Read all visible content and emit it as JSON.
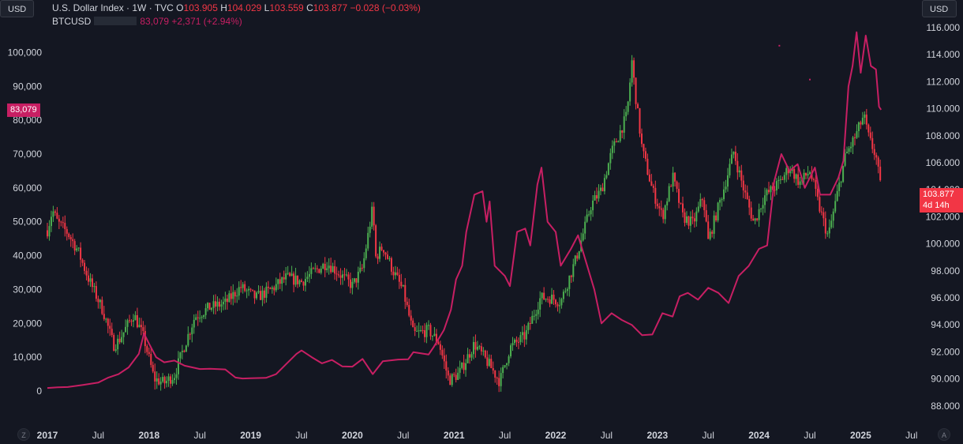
{
  "buttons": {
    "left_currency": "USD",
    "right_currency": "USD"
  },
  "legend": {
    "main_symbol": "U.S. Dollar Index · 1W · TVC",
    "open_label": "O",
    "open_value": "103.905",
    "high_label": "H",
    "high_value": "104.029",
    "low_label": "L",
    "low_value": "103.559",
    "close_label": "C",
    "close_value": "103.877",
    "change": "−0.028 (−0.03%)",
    "overlay_symbol": "BTCUSD",
    "overlay_value": "83,079",
    "overlay_change": "+2,371 (+2.94%)"
  },
  "badges": {
    "btc_price": "83,079",
    "dxy_price": "103.877",
    "dxy_countdown": "4d 14h"
  },
  "corners": {
    "left": "Z",
    "right": "A"
  },
  "colors": {
    "background": "#141722",
    "up": "#4caf50",
    "down": "#f23645",
    "overlay": "#c71f63",
    "axis_text": "#d1d4dc"
  },
  "chart_data": {
    "type": "line",
    "candlestick_series": "U.S. Dollar Index · 1W · TVC",
    "overlay_series": "BTCUSD",
    "x_ticks": [
      "2017",
      "Jul",
      "2018",
      "Jul",
      "2019",
      "Jul",
      "2020",
      "Jul",
      "2021",
      "Jul",
      "2022",
      "Jul",
      "2023",
      "Jul",
      "2024",
      "Jul",
      "2025",
      "Jul"
    ],
    "y_left_ticks": [
      "100,000",
      "90,000",
      "80,000",
      "70,000",
      "60,000",
      "50,000",
      "40,000",
      "30,000",
      "20,000",
      "10,000",
      "0"
    ],
    "y_left_range": [
      0,
      100000
    ],
    "y_right_ticks": [
      "116.000",
      "114.000",
      "112.000",
      "110.000",
      "108.000",
      "106.000",
      "104.000",
      "102.000",
      "100.000",
      "98.000",
      "96.000",
      "94.000",
      "92.000",
      "90.000",
      "88.000"
    ],
    "y_right_range": [
      88,
      116
    ],
    "dxy_anchors": [
      [
        2017.0,
        101.0
      ],
      [
        2017.05,
        102.5
      ],
      [
        2017.1,
        101.6
      ],
      [
        2017.2,
        100.8
      ],
      [
        2017.3,
        99.5
      ],
      [
        2017.4,
        97.5
      ],
      [
        2017.55,
        95.0
      ],
      [
        2017.65,
        92.5
      ],
      [
        2017.7,
        92.8
      ],
      [
        2017.85,
        94.8
      ],
      [
        2017.95,
        93.0
      ],
      [
        2018.05,
        90.0
      ],
      [
        2018.15,
        89.7
      ],
      [
        2018.25,
        90.3
      ],
      [
        2018.35,
        92.5
      ],
      [
        2018.45,
        94.6
      ],
      [
        2018.6,
        95.3
      ],
      [
        2018.75,
        95.6
      ],
      [
        2018.9,
        96.8
      ],
      [
        2019.05,
        96.0
      ],
      [
        2019.2,
        96.6
      ],
      [
        2019.35,
        97.5
      ],
      [
        2019.5,
        97.2
      ],
      [
        2019.6,
        97.8
      ],
      [
        2019.75,
        98.6
      ],
      [
        2019.9,
        97.6
      ],
      [
        2020.0,
        96.9
      ],
      [
        2020.1,
        98.2
      ],
      [
        2020.2,
        102.7
      ],
      [
        2020.23,
        99.0
      ],
      [
        2020.3,
        99.8
      ],
      [
        2020.4,
        98.0
      ],
      [
        2020.5,
        96.5
      ],
      [
        2020.6,
        93.3
      ],
      [
        2020.75,
        93.6
      ],
      [
        2020.85,
        92.7
      ],
      [
        2020.95,
        89.9
      ],
      [
        2021.05,
        90.4
      ],
      [
        2021.2,
        92.6
      ],
      [
        2021.35,
        91.0
      ],
      [
        2021.45,
        89.8
      ],
      [
        2021.55,
        92.3
      ],
      [
        2021.7,
        93.2
      ],
      [
        2021.85,
        96.0
      ],
      [
        2021.95,
        96.0
      ],
      [
        2022.05,
        95.7
      ],
      [
        2022.2,
        98.9
      ],
      [
        2022.35,
        102.9
      ],
      [
        2022.45,
        104.0
      ],
      [
        2022.55,
        106.8
      ],
      [
        2022.7,
        109.5
      ],
      [
        2022.75,
        113.5
      ],
      [
        2022.78,
        111.3
      ],
      [
        2022.85,
        107.0
      ],
      [
        2022.95,
        104.0
      ],
      [
        2023.05,
        102.0
      ],
      [
        2023.15,
        105.0
      ],
      [
        2023.25,
        102.0
      ],
      [
        2023.35,
        101.5
      ],
      [
        2023.45,
        103.5
      ],
      [
        2023.5,
        100.2
      ],
      [
        2023.65,
        104.0
      ],
      [
        2023.75,
        106.8
      ],
      [
        2023.85,
        104.0
      ],
      [
        2023.95,
        101.5
      ],
      [
        2024.05,
        103.5
      ],
      [
        2024.2,
        104.5
      ],
      [
        2024.3,
        105.7
      ],
      [
        2024.4,
        104.5
      ],
      [
        2024.5,
        105.4
      ],
      [
        2024.6,
        102.5
      ],
      [
        2024.68,
        100.5
      ],
      [
        2024.75,
        103.0
      ],
      [
        2024.85,
        106.5
      ],
      [
        2024.95,
        108.0
      ],
      [
        2025.03,
        109.5
      ],
      [
        2025.08,
        107.8
      ],
      [
        2025.15,
        106.5
      ],
      [
        2025.2,
        103.9
      ]
    ],
    "btc_points": [
      [
        2017.0,
        900
      ],
      [
        2017.1,
        1100
      ],
      [
        2017.2,
        1200
      ],
      [
        2017.35,
        1800
      ],
      [
        2017.5,
        2500
      ],
      [
        2017.6,
        4000
      ],
      [
        2017.7,
        5000
      ],
      [
        2017.8,
        7000
      ],
      [
        2017.9,
        11000
      ],
      [
        2017.95,
        17000
      ],
      [
        2018.0,
        14000
      ],
      [
        2018.07,
        10000
      ],
      [
        2018.15,
        8500
      ],
      [
        2018.25,
        9000
      ],
      [
        2018.35,
        7500
      ],
      [
        2018.5,
        6500
      ],
      [
        2018.6,
        6600
      ],
      [
        2018.75,
        6400
      ],
      [
        2018.85,
        4000
      ],
      [
        2018.92,
        3700
      ],
      [
        2019.0,
        3800
      ],
      [
        2019.15,
        3900
      ],
      [
        2019.25,
        5000
      ],
      [
        2019.35,
        8000
      ],
      [
        2019.45,
        11000
      ],
      [
        2019.5,
        12000
      ],
      [
        2019.6,
        10000
      ],
      [
        2019.7,
        8200
      ],
      [
        2019.8,
        9200
      ],
      [
        2019.9,
        7300
      ],
      [
        2020.0,
        7200
      ],
      [
        2020.1,
        9500
      ],
      [
        2020.2,
        5000
      ],
      [
        2020.3,
        8800
      ],
      [
        2020.45,
        9300
      ],
      [
        2020.55,
        9400
      ],
      [
        2020.6,
        11500
      ],
      [
        2020.75,
        10800
      ],
      [
        2020.8,
        13000
      ],
      [
        2020.9,
        18000
      ],
      [
        2020.97,
        24000
      ],
      [
        2021.02,
        33000
      ],
      [
        2021.08,
        37000
      ],
      [
        2021.12,
        47000
      ],
      [
        2021.2,
        58000
      ],
      [
        2021.28,
        59000
      ],
      [
        2021.32,
        50000
      ],
      [
        2021.35,
        56000
      ],
      [
        2021.4,
        37000
      ],
      [
        2021.5,
        34000
      ],
      [
        2021.55,
        31000
      ],
      [
        2021.62,
        47000
      ],
      [
        2021.7,
        48000
      ],
      [
        2021.75,
        43000
      ],
      [
        2021.82,
        61000
      ],
      [
        2021.86,
        66000
      ],
      [
        2021.92,
        50000
      ],
      [
        2022.0,
        47000
      ],
      [
        2022.05,
        37000
      ],
      [
        2022.15,
        42000
      ],
      [
        2022.22,
        46000
      ],
      [
        2022.3,
        38000
      ],
      [
        2022.38,
        30000
      ],
      [
        2022.45,
        20000
      ],
      [
        2022.55,
        23000
      ],
      [
        2022.65,
        21000
      ],
      [
        2022.75,
        19500
      ],
      [
        2022.85,
        16500
      ],
      [
        2022.95,
        16700
      ],
      [
        2023.05,
        23000
      ],
      [
        2023.15,
        22000
      ],
      [
        2023.22,
        28000
      ],
      [
        2023.3,
        29000
      ],
      [
        2023.4,
        27000
      ],
      [
        2023.5,
        30500
      ],
      [
        2023.6,
        29000
      ],
      [
        2023.7,
        26000
      ],
      [
        2023.8,
        34000
      ],
      [
        2023.9,
        37000
      ],
      [
        2024.0,
        42000
      ],
      [
        2024.08,
        43000
      ],
      [
        2024.15,
        62000
      ],
      [
        2024.22,
        70000
      ],
      [
        2024.3,
        65000
      ],
      [
        2024.38,
        67000
      ],
      [
        2024.45,
        60000
      ],
      [
        2024.55,
        66000
      ],
      [
        2024.6,
        58000
      ],
      [
        2024.7,
        58000
      ],
      [
        2024.78,
        63000
      ],
      [
        2024.83,
        68000
      ],
      [
        2024.88,
        90000
      ],
      [
        2024.92,
        96000
      ],
      [
        2024.96,
        106000
      ],
      [
        2025.0,
        94000
      ],
      [
        2025.05,
        105000
      ],
      [
        2025.1,
        96000
      ],
      [
        2025.15,
        95000
      ],
      [
        2025.18,
        84000
      ],
      [
        2025.2,
        83079
      ]
    ],
    "btc_stray_points": [
      [
        2024.2,
        102000
      ],
      [
        2024.5,
        92000
      ]
    ]
  }
}
